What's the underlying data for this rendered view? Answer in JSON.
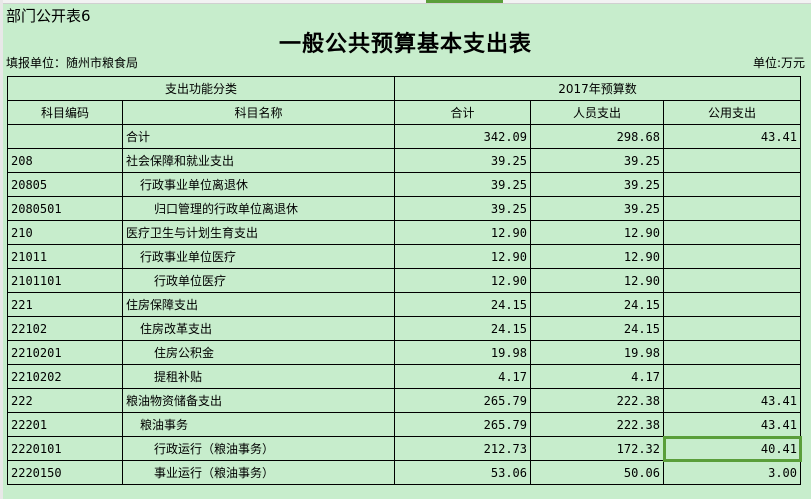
{
  "sheet_label": "部门公开表6",
  "title": "一般公共预算基本支出表",
  "unit_left": "填报单位：随州市粮食局",
  "unit_right": "单位:万元",
  "header": {
    "group1": "支出功能分类",
    "group2": "2017年预算数",
    "code": "科目编码",
    "name": "科目名称",
    "total": "合计",
    "personnel": "人员支出",
    "public": "公用支出"
  },
  "selection_color": "#5a9e3a",
  "rows": [
    {
      "code": "",
      "name": "合计",
      "level": 0,
      "total": "342.09",
      "personnel": "298.68",
      "public": "43.41"
    },
    {
      "code": "208",
      "name": "社会保障和就业支出",
      "level": 0,
      "total": "39.25",
      "personnel": "39.25",
      "public": ""
    },
    {
      "code": "20805",
      "name": "行政事业单位离退休",
      "level": 1,
      "total": "39.25",
      "personnel": "39.25",
      "public": ""
    },
    {
      "code": "2080501",
      "name": "归口管理的行政单位离退休",
      "level": 2,
      "total": "39.25",
      "personnel": "39.25",
      "public": ""
    },
    {
      "code": "210",
      "name": "医疗卫生与计划生育支出",
      "level": 0,
      "total": "12.90",
      "personnel": "12.90",
      "public": ""
    },
    {
      "code": "21011",
      "name": "行政事业单位医疗",
      "level": 1,
      "total": "12.90",
      "personnel": "12.90",
      "public": ""
    },
    {
      "code": "2101101",
      "name": "行政单位医疗",
      "level": 2,
      "total": "12.90",
      "personnel": "12.90",
      "public": ""
    },
    {
      "code": "221",
      "name": "住房保障支出",
      "level": 0,
      "total": "24.15",
      "personnel": "24.15",
      "public": ""
    },
    {
      "code": "22102",
      "name": "住房改革支出",
      "level": 1,
      "total": "24.15",
      "personnel": "24.15",
      "public": ""
    },
    {
      "code": "2210201",
      "name": "住房公积金",
      "level": 2,
      "total": "19.98",
      "personnel": "19.98",
      "public": ""
    },
    {
      "code": "2210202",
      "name": "提租补贴",
      "level": 2,
      "total": "4.17",
      "personnel": "4.17",
      "public": ""
    },
    {
      "code": "222",
      "name": "粮油物资储备支出",
      "level": 0,
      "total": "265.79",
      "personnel": "222.38",
      "public": "43.41"
    },
    {
      "code": "22201",
      "name": "粮油事务",
      "level": 1,
      "total": "265.79",
      "personnel": "222.38",
      "public": "43.41"
    },
    {
      "code": "2220101",
      "name": "行政运行（粮油事务）",
      "level": 2,
      "total": "212.73",
      "personnel": "172.32",
      "public": "40.41",
      "selected": true
    },
    {
      "code": "2220150",
      "name": "事业运行（粮油事务）",
      "level": 2,
      "total": "53.06",
      "personnel": "50.06",
      "public": "3.00"
    }
  ]
}
